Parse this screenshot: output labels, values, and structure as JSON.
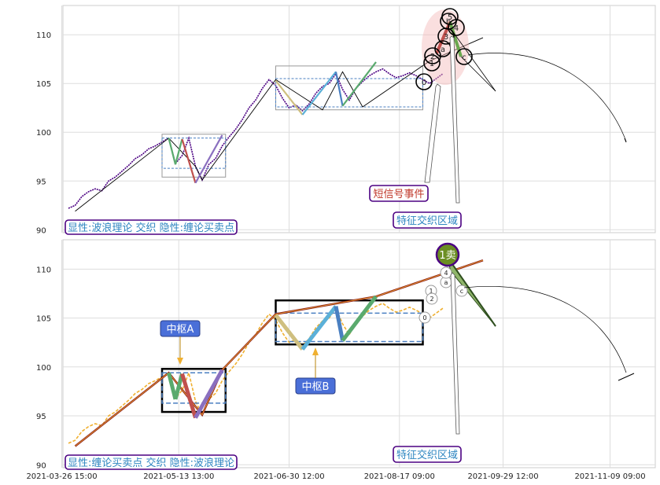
{
  "chart_data": [
    {
      "type": "line",
      "panel": "top",
      "y_ticks": [
        90,
        95,
        100,
        105,
        110
      ],
      "ylim": [
        89.7,
        113.0
      ],
      "price_series": [
        [
          0,
          92.2
        ],
        [
          1,
          92.5
        ],
        [
          2,
          93.4
        ],
        [
          3,
          93.9
        ],
        [
          4,
          94.2
        ],
        [
          5,
          94.0
        ],
        [
          6,
          95.0
        ],
        [
          7,
          95.4
        ],
        [
          8,
          96.0
        ],
        [
          9,
          96.6
        ],
        [
          10,
          97.3
        ],
        [
          11,
          97.7
        ],
        [
          12,
          98.3
        ],
        [
          13,
          98.6
        ],
        [
          14,
          99.0
        ],
        [
          15,
          99.4
        ],
        [
          16,
          96.8
        ],
        [
          17,
          97.6
        ],
        [
          18,
          99.4
        ],
        [
          19,
          96.5
        ],
        [
          20,
          95.1
        ],
        [
          21,
          96.7
        ],
        [
          22,
          97.3
        ],
        [
          23,
          98.6
        ],
        [
          24,
          99.5
        ],
        [
          25,
          100.3
        ],
        [
          26,
          101.3
        ],
        [
          27,
          102.5
        ],
        [
          28,
          103.3
        ],
        [
          29,
          104.5
        ],
        [
          30,
          105.4
        ],
        [
          31,
          104.8
        ],
        [
          32,
          103.5
        ],
        [
          33,
          102.5
        ],
        [
          34,
          102.8
        ],
        [
          35,
          102.2
        ],
        [
          36,
          102.9
        ],
        [
          37,
          104.0
        ],
        [
          38,
          104.7
        ],
        [
          39,
          105.0
        ],
        [
          40,
          106.0
        ],
        [
          41,
          104.4
        ],
        [
          42,
          103.3
        ],
        [
          43,
          104.5
        ],
        [
          44,
          105.2
        ],
        [
          45,
          105.8
        ],
        [
          46,
          106.2
        ],
        [
          47,
          106.5
        ],
        [
          48,
          106.0
        ],
        [
          49,
          105.6
        ],
        [
          50,
          105.8
        ],
        [
          51,
          106.1
        ],
        [
          52,
          105.8
        ],
        [
          53,
          105.4
        ],
        [
          54,
          105.0
        ],
        [
          55,
          105.5
        ],
        [
          56,
          106.0
        ]
      ],
      "bi": [
        [
          1,
          91.9
        ],
        [
          15,
          99.4
        ],
        [
          19,
          96.5
        ],
        [
          20,
          95.1
        ],
        [
          31,
          105.4
        ],
        [
          38,
          102.3
        ],
        [
          41,
          106.2
        ],
        [
          44,
          102.6
        ],
        [
          54,
          107.3
        ],
        [
          62,
          109.7
        ]
      ],
      "wave_labels": [
        "0",
        "1",
        "2",
        "a",
        "3",
        "b",
        "4",
        "5",
        "c"
      ],
      "zs_boxes": [
        {
          "x0": 14,
          "x1": 23.5,
          "y0": 95.4,
          "y1": 99.8,
          "inner_y0": 96.3,
          "inner_y1": 99.4
        },
        {
          "x0": 31,
          "x1": 53,
          "y0": 102.3,
          "y1": 106.8,
          "inner_y0": 102.6,
          "inner_y1": 105.5
        }
      ],
      "legend": "显性:波浪理论 交织 隐性:缠论买卖点",
      "annotations": [
        {
          "text": "短信号事件",
          "color": "#c0392b"
        },
        {
          "text": "特征交织区域",
          "color": "#2e86c1"
        }
      ]
    },
    {
      "type": "line",
      "panel": "bottom",
      "y_ticks": [
        90,
        95,
        100,
        105,
        110
      ],
      "ylim": [
        89.7,
        113.0
      ],
      "x_ticks": [
        "2021-03-26 15:00",
        "2021-05-13 13:00",
        "2021-06-30 12:00",
        "2021-08-17 09:00",
        "2021-09-29 12:00",
        "2021-11-09 09:00"
      ],
      "legend": "显性:缠论买卖点 交织 隐性:波浪理论",
      "zs_labels": [
        "中枢A",
        "中枢B"
      ],
      "signal": "1卖",
      "wave_labels": [
        "0",
        "1",
        "2",
        "a",
        "4",
        "c"
      ],
      "annotations": [
        {
          "text": "特征交织区域",
          "color": "#2e86c1"
        }
      ]
    }
  ]
}
